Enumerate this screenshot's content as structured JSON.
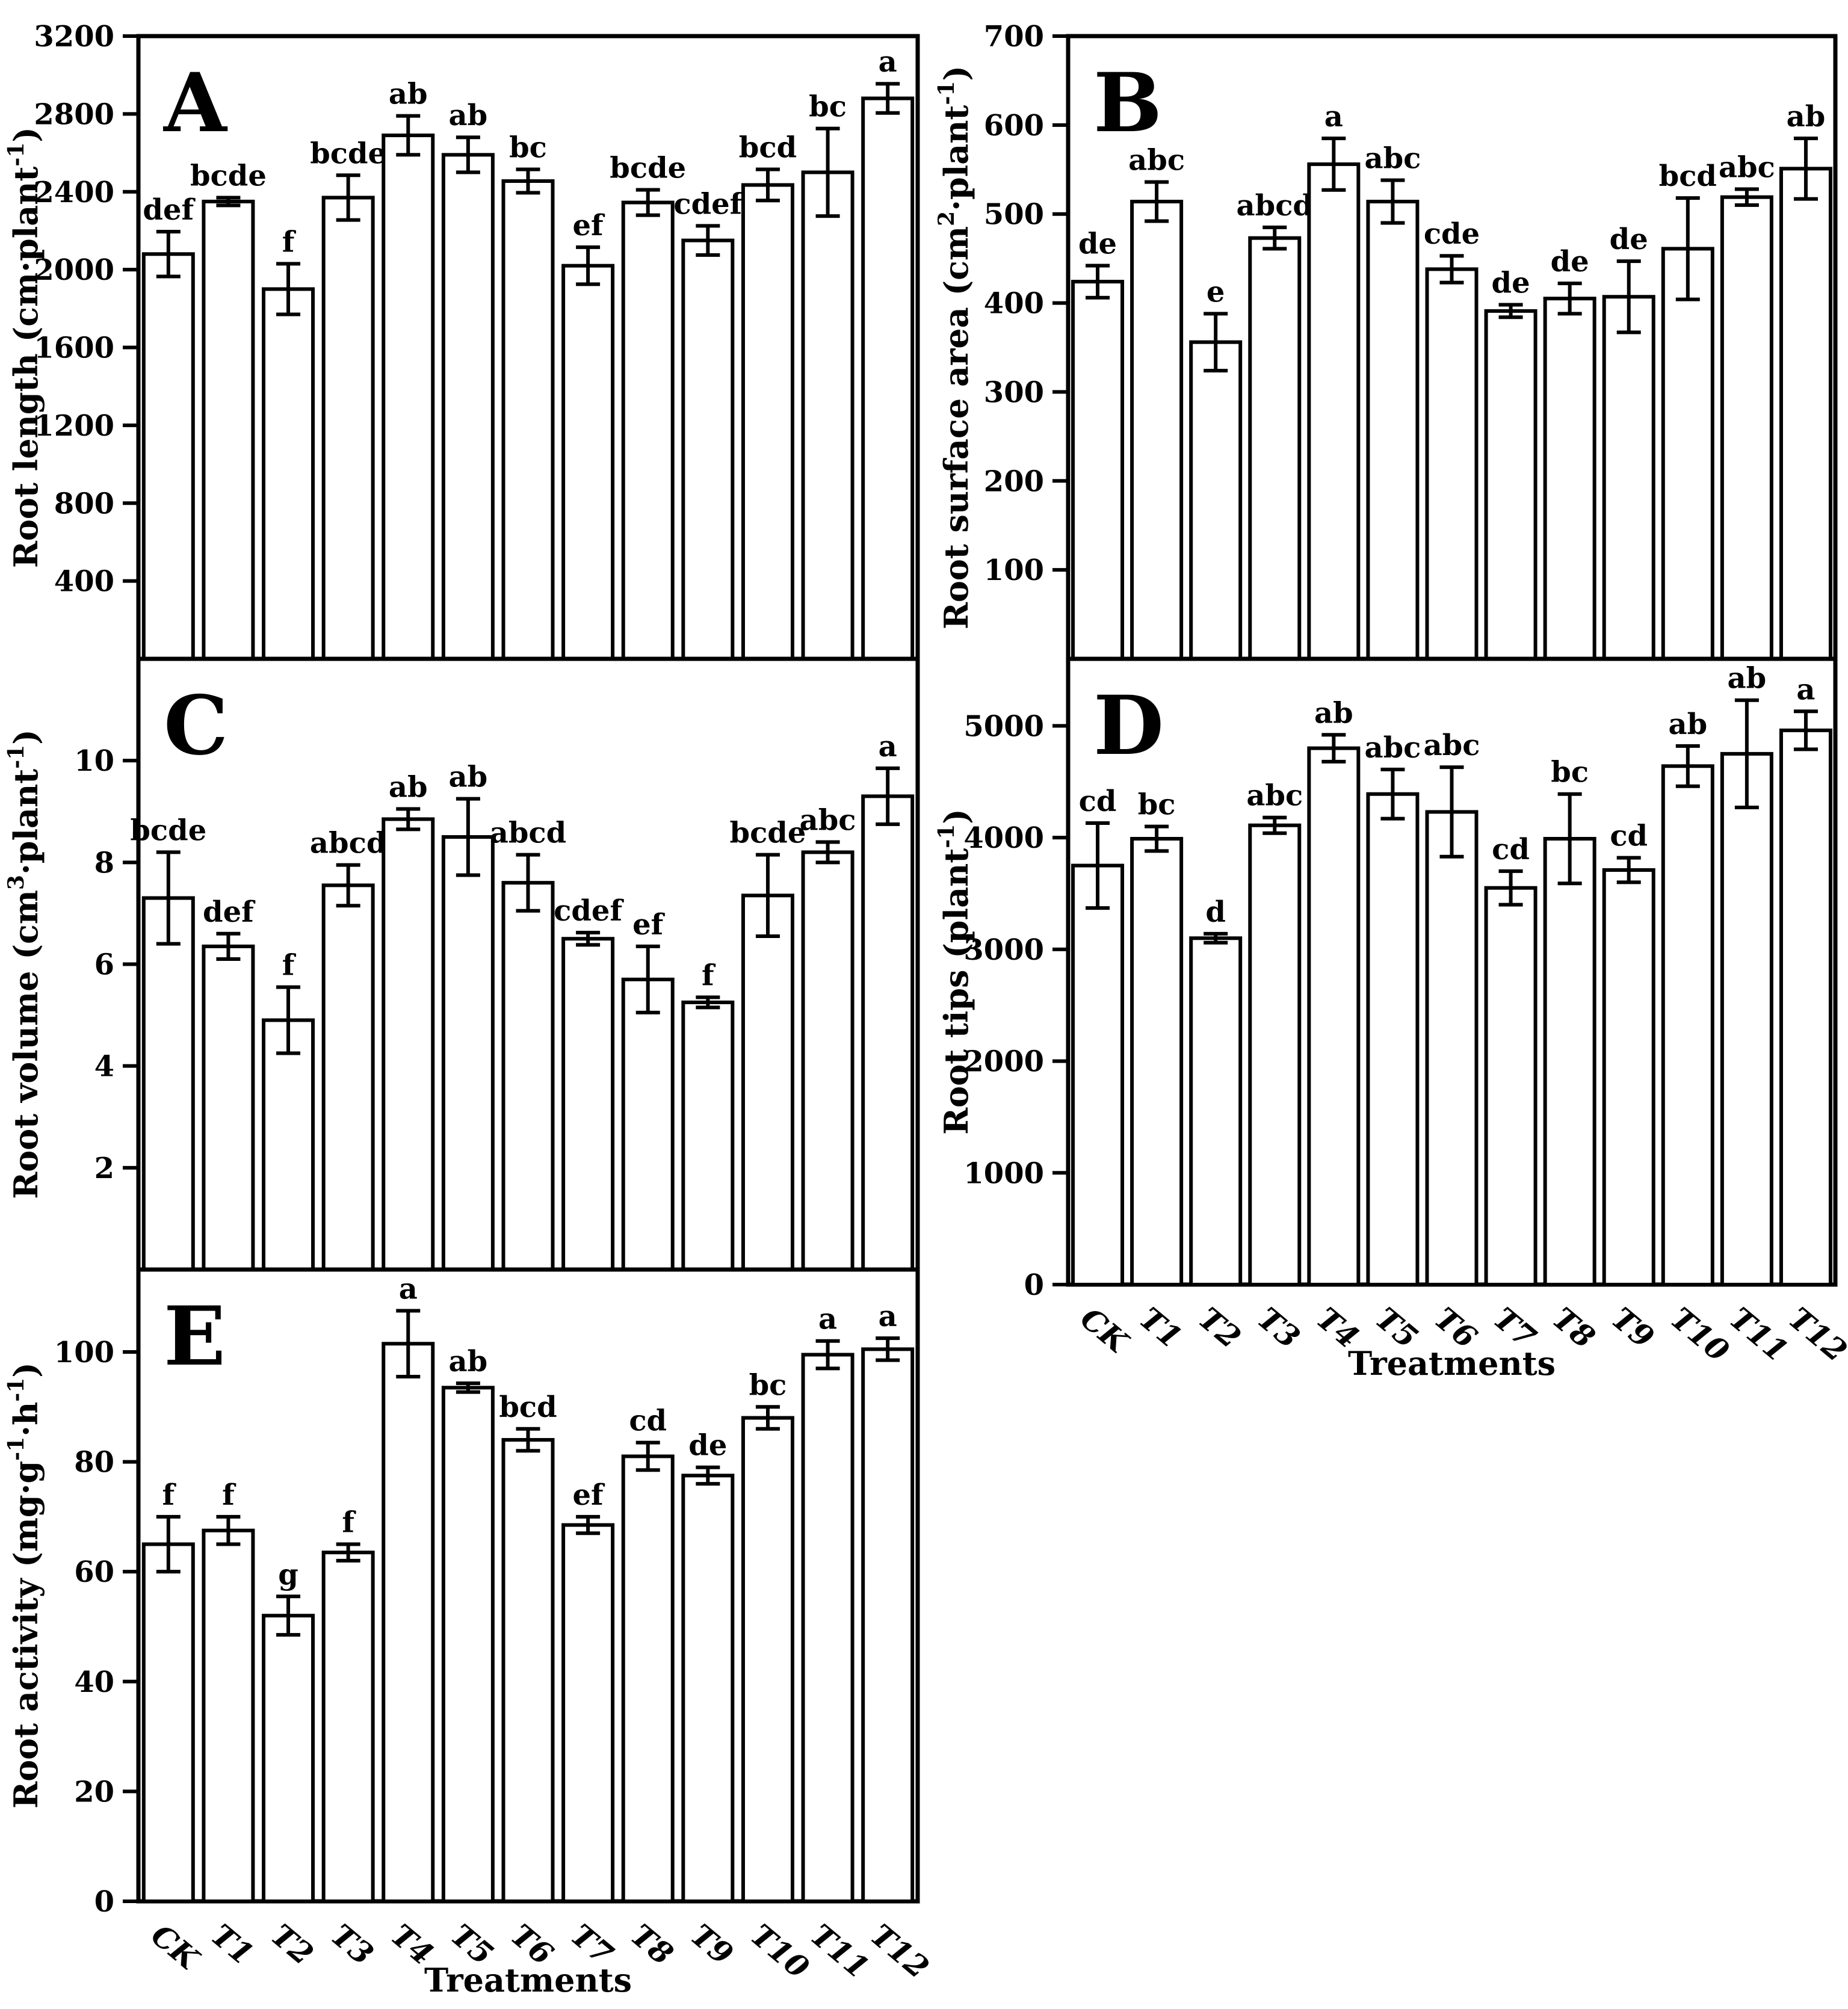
{
  "figure": {
    "x_axis_title": "Treatments",
    "categories": [
      "CK",
      "T1",
      "T2",
      "T3",
      "T4",
      "T5",
      "T6",
      "T7",
      "T8",
      "T9",
      "T10",
      "T11",
      "T12"
    ],
    "bar_fill": "#ffffff",
    "bar_stroke": "#000000",
    "background": "#ffffff"
  },
  "chart_data": [
    {
      "panel": "A",
      "type": "bar",
      "ylabel": "Root length (cm·plant⁻¹)",
      "ylabel_parts": [
        [
          "Root length (cm·plant"
        ],
        [
          "-1",
          "sup"
        ],
        [
          ")"
        ]
      ],
      "xlabel": "",
      "show_x_tick_labels": false,
      "categories": [
        "CK",
        "T1",
        "T2",
        "T3",
        "T4",
        "T5",
        "T6",
        "T7",
        "T8",
        "T9",
        "T10",
        "T11",
        "T12"
      ],
      "values": [
        2080,
        2350,
        1900,
        2370,
        2690,
        2590,
        2455,
        2020,
        2345,
        2150,
        2435,
        2500,
        2880
      ],
      "errors": [
        115,
        20,
        130,
        115,
        100,
        90,
        60,
        95,
        65,
        75,
        80,
        225,
        75
      ],
      "sig_letters": [
        "def",
        "bcde",
        "f",
        "bcde",
        "ab",
        "ab",
        "bc",
        "ef",
        "bcde",
        "cdef",
        "bcd",
        "bc",
        "a"
      ],
      "yticks": [
        400,
        800,
        1200,
        1600,
        2000,
        2400,
        2800,
        3200
      ],
      "ylim": [
        0,
        3200
      ],
      "grid": false
    },
    {
      "panel": "B",
      "type": "bar",
      "ylabel": "Root surface area (cm²·plant⁻¹)",
      "ylabel_parts": [
        [
          "Root surface area (cm"
        ],
        [
          "2",
          "sup"
        ],
        [
          "·plant"
        ],
        [
          "-1",
          "sup"
        ],
        [
          ")"
        ]
      ],
      "xlabel": "",
      "show_x_tick_labels": false,
      "categories": [
        "CK",
        "T1",
        "T2",
        "T3",
        "T4",
        "T5",
        "T6",
        "T7",
        "T8",
        "T9",
        "T10",
        "T11",
        "T12"
      ],
      "values": [
        424,
        514,
        356,
        473,
        556,
        514,
        438,
        391,
        405,
        407,
        461,
        519,
        551
      ],
      "errors": [
        18,
        22,
        32,
        12,
        29,
        24,
        15,
        7,
        17,
        40,
        57,
        9,
        34
      ],
      "sig_letters": [
        "de",
        "abc",
        "e",
        "abcd",
        "a",
        "abc",
        "cde",
        "de",
        "de",
        "de",
        "bcd",
        "abc",
        "ab"
      ],
      "yticks": [
        100,
        200,
        300,
        400,
        500,
        600,
        700
      ],
      "ylim": [
        0,
        700
      ],
      "grid": false
    },
    {
      "panel": "C",
      "type": "bar",
      "ylabel": "Root volume (cm³·plant⁻¹)",
      "ylabel_parts": [
        [
          "Root volume (cm"
        ],
        [
          "3",
          "sup"
        ],
        [
          "·plant"
        ],
        [
          "-1",
          "sup"
        ],
        [
          ")"
        ]
      ],
      "xlabel": "",
      "show_x_tick_labels": false,
      "categories": [
        "CK",
        "T1",
        "T2",
        "T3",
        "T4",
        "T5",
        "T6",
        "T7",
        "T8",
        "T9",
        "T10",
        "T11",
        "T12"
      ],
      "values": [
        7.3,
        6.35,
        4.9,
        7.55,
        8.85,
        8.5,
        7.6,
        6.5,
        5.7,
        5.25,
        7.35,
        8.2,
        9.3
      ],
      "errors": [
        0.9,
        0.25,
        0.65,
        0.4,
        0.2,
        0.75,
        0.55,
        0.12,
        0.65,
        0.1,
        0.8,
        0.2,
        0.55
      ],
      "sig_letters": [
        "bcde",
        "def",
        "f",
        "abcd",
        "ab",
        "ab",
        "abcd",
        "cdef",
        "ef",
        "f",
        "bcde",
        "abc",
        "a"
      ],
      "yticks": [
        2,
        4,
        6,
        8,
        10
      ],
      "ylim": [
        0,
        12
      ],
      "grid": false
    },
    {
      "panel": "D",
      "type": "bar",
      "ylabel": "Root tips (plant⁻¹)",
      "ylabel_parts": [
        [
          "Root tips (plant"
        ],
        [
          "-1",
          "sup"
        ],
        [
          ")"
        ]
      ],
      "xlabel": "Treatments",
      "show_x_tick_labels": true,
      "categories": [
        "CK",
        "T1",
        "T2",
        "T3",
        "T4",
        "T5",
        "T6",
        "T7",
        "T8",
        "T9",
        "T10",
        "T11",
        "T12"
      ],
      "values": [
        3750,
        3990,
        3100,
        4110,
        4800,
        4390,
        4230,
        3550,
        3990,
        3710,
        4640,
        4750,
        4960
      ],
      "errors": [
        380,
        110,
        40,
        70,
        120,
        220,
        400,
        150,
        400,
        110,
        180,
        480,
        170
      ],
      "sig_letters": [
        "cd",
        "bc",
        "d",
        "abc",
        "ab",
        "abc",
        "abc",
        "cd",
        "bc",
        "cd",
        "ab",
        "ab",
        "a"
      ],
      "yticks": [
        0,
        1000,
        2000,
        3000,
        4000,
        5000
      ],
      "ylim": [
        0,
        5600
      ],
      "grid": false
    },
    {
      "panel": "E",
      "type": "bar",
      "ylabel": "Root activity (mg·g⁻¹·h⁻¹)",
      "ylabel_parts": [
        [
          "Root activity (mg·g"
        ],
        [
          "-1",
          "sup"
        ],
        [
          "·h"
        ],
        [
          "-1",
          "sup"
        ],
        [
          ")"
        ]
      ],
      "xlabel": "Treatments",
      "show_x_tick_labels": true,
      "categories": [
        "CK",
        "T1",
        "T2",
        "T3",
        "T4",
        "T5",
        "T6",
        "T7",
        "T8",
        "T9",
        "T10",
        "T11",
        "T12"
      ],
      "values": [
        65,
        67.5,
        52,
        63.5,
        101.5,
        93.5,
        84,
        68.5,
        81,
        77.5,
        88,
        99.5,
        100.5
      ],
      "errors": [
        5,
        2.5,
        3.5,
        1.5,
        6,
        0.8,
        2,
        1.5,
        2.5,
        1.5,
        2,
        2.5,
        2
      ],
      "sig_letters": [
        "f",
        "f",
        "g",
        "f",
        "a",
        "ab",
        "bcd",
        "ef",
        "cd",
        "de",
        "bc",
        "a",
        "a"
      ],
      "yticks": [
        0,
        20,
        40,
        60,
        80,
        100
      ],
      "ylim": [
        0,
        115
      ],
      "grid": false
    }
  ]
}
